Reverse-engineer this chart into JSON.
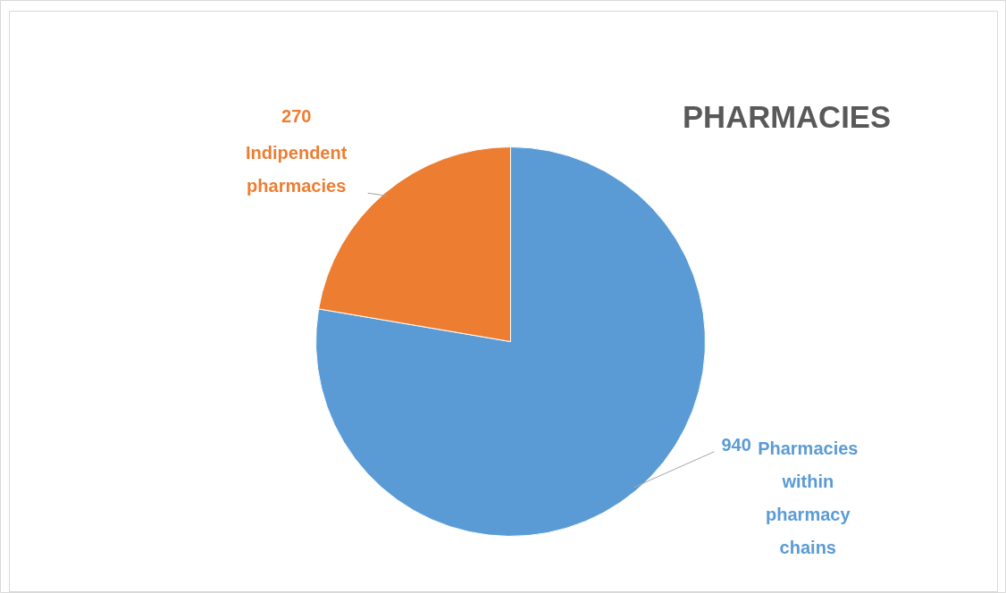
{
  "chart_data": {
    "type": "pie",
    "title": "PHARMACIES",
    "categories": [
      "Pharmacies within pharmacy chains",
      "Indipendent pharmacies"
    ],
    "values": [
      940,
      270
    ],
    "colors": [
      "#5b9bd5",
      "#ed7d31"
    ],
    "data_labels": true
  }
}
